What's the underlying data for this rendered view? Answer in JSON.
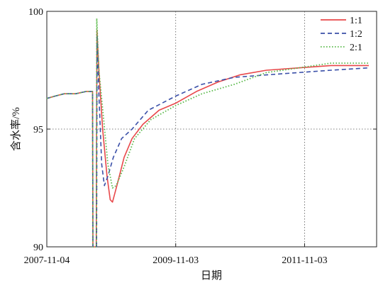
{
  "chart_data": {
    "type": "line",
    "xlabel": "日期",
    "ylabel": "含水率/%",
    "x_ticks": [
      "2007-11-04",
      "2009-11-03",
      "2011-11-03"
    ],
    "y_ticks": [
      90,
      95,
      100
    ],
    "xlim": [
      "2007-11-04",
      "2012-12-15"
    ],
    "ylim": [
      90,
      100
    ],
    "grid": true,
    "legend_position": "top-right",
    "series": [
      {
        "name": "1:1",
        "color": "#e8484a",
        "dash": "solid",
        "points": [
          [
            "2007-11-04",
            96.3
          ],
          [
            "2007-12-20",
            96.4
          ],
          [
            "2008-02-10",
            96.5
          ],
          [
            "2008-04-15",
            96.5
          ],
          [
            "2008-06-15",
            96.6
          ],
          [
            "2008-07-20",
            96.6
          ],
          [
            "2008-07-22",
            90.0
          ],
          [
            "2008-08-10",
            90.0
          ],
          [
            "2008-08-14",
            99.2
          ],
          [
            "2008-08-25",
            97.5
          ],
          [
            "2008-09-15",
            95.0
          ],
          [
            "2008-10-10",
            93.0
          ],
          [
            "2008-10-28",
            92.0
          ],
          [
            "2008-11-10",
            91.9
          ],
          [
            "2008-12-05",
            92.6
          ],
          [
            "2009-01-15",
            93.8
          ],
          [
            "2009-03-01",
            94.6
          ],
          [
            "2009-05-01",
            95.2
          ],
          [
            "2009-08-01",
            95.8
          ],
          [
            "2009-11-03",
            96.1
          ],
          [
            "2010-03-01",
            96.6
          ],
          [
            "2010-07-01",
            97.0
          ],
          [
            "2010-11-01",
            97.3
          ],
          [
            "2011-04-01",
            97.5
          ],
          [
            "2011-10-01",
            97.6
          ],
          [
            "2012-04-01",
            97.7
          ],
          [
            "2012-11-01",
            97.7
          ]
        ]
      },
      {
        "name": "1:2",
        "color": "#3a4fa8",
        "dash": "dashed",
        "points": [
          [
            "2007-11-04",
            96.3
          ],
          [
            "2007-12-20",
            96.4
          ],
          [
            "2008-02-10",
            96.5
          ],
          [
            "2008-04-15",
            96.5
          ],
          [
            "2008-06-15",
            96.6
          ],
          [
            "2008-07-20",
            96.6
          ],
          [
            "2008-07-22",
            90.0
          ],
          [
            "2008-08-12",
            90.0
          ],
          [
            "2008-08-15",
            99.0
          ],
          [
            "2008-08-25",
            96.5
          ],
          [
            "2008-09-10",
            93.5
          ],
          [
            "2008-09-25",
            92.6
          ],
          [
            "2008-10-15",
            93.0
          ],
          [
            "2008-11-15",
            93.8
          ],
          [
            "2009-01-01",
            94.6
          ],
          [
            "2009-03-01",
            95.0
          ],
          [
            "2009-06-01",
            95.8
          ],
          [
            "2009-11-03",
            96.4
          ],
          [
            "2010-04-01",
            96.9
          ],
          [
            "2010-10-01",
            97.2
          ],
          [
            "2011-04-01",
            97.3
          ],
          [
            "2011-10-01",
            97.4
          ],
          [
            "2012-04-01",
            97.5
          ],
          [
            "2012-11-01",
            97.6
          ]
        ]
      },
      {
        "name": "2:1",
        "color": "#5dbb4d",
        "dash": "dotted",
        "points": [
          [
            "2007-11-04",
            96.3
          ],
          [
            "2007-12-20",
            96.4
          ],
          [
            "2008-02-10",
            96.5
          ],
          [
            "2008-04-15",
            96.5
          ],
          [
            "2008-06-15",
            96.6
          ],
          [
            "2008-07-20",
            96.6
          ],
          [
            "2008-07-22",
            90.0
          ],
          [
            "2008-08-11",
            90.0
          ],
          [
            "2008-08-13",
            99.7
          ],
          [
            "2008-08-25",
            97.5
          ],
          [
            "2008-09-20",
            95.5
          ],
          [
            "2008-10-15",
            93.5
          ],
          [
            "2008-11-10",
            92.5
          ],
          [
            "2008-12-01",
            92.6
          ],
          [
            "2009-01-15",
            93.4
          ],
          [
            "2009-03-15",
            94.6
          ],
          [
            "2009-06-15",
            95.4
          ],
          [
            "2009-11-03",
            96.0
          ],
          [
            "2010-04-01",
            96.5
          ],
          [
            "2010-10-01",
            96.9
          ],
          [
            "2011-04-01",
            97.4
          ],
          [
            "2011-10-01",
            97.6
          ],
          [
            "2012-04-01",
            97.8
          ],
          [
            "2012-11-01",
            97.8
          ]
        ]
      }
    ]
  }
}
